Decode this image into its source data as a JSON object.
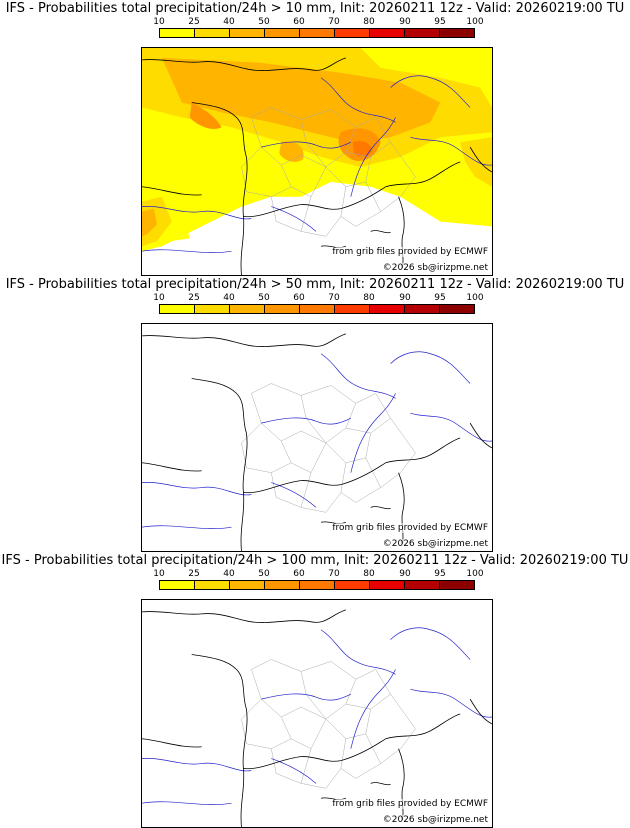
{
  "colorbar": {
    "ticks": [
      "10",
      "25",
      "40",
      "50",
      "60",
      "70",
      "80",
      "90",
      "95",
      "100"
    ],
    "colors": [
      "#ffff00",
      "#ffdc00",
      "#ffb400",
      "#ff9600",
      "#ff7800",
      "#ff3c00",
      "#e60000",
      "#b40000",
      "#8c0000"
    ]
  },
  "panels": [
    {
      "title": "IFS - Probabilities total precipitation/24h > 10 mm, Init: 20260211 12z - Valid: 20260219:00 TU",
      "threshold_mm": 10,
      "source_credit": "from grib files provided by ECMWF",
      "copyright": "©2026 sb@irizpme.net"
    },
    {
      "title": "IFS - Probabilities total precipitation/24h > 50 mm, Init: 20260211 12z - Valid: 20260219:00 TU",
      "threshold_mm": 50,
      "source_credit": "from grib files provided by ECMWF",
      "copyright": "©2026 sb@irizpme.net"
    },
    {
      "title": "IFS - Probabilities total precipitation/24h > 100 mm, Init: 20260211 12z - Valid: 20260219:00 TU",
      "threshold_mm": 100,
      "source_credit": "from grib files provided by ECMWF",
      "copyright": "©2026 sb@irizpme.net"
    }
  ],
  "map_colors": {
    "coast": "#000000",
    "rivers": "#2222cc",
    "regions": "#aaaaaa"
  }
}
